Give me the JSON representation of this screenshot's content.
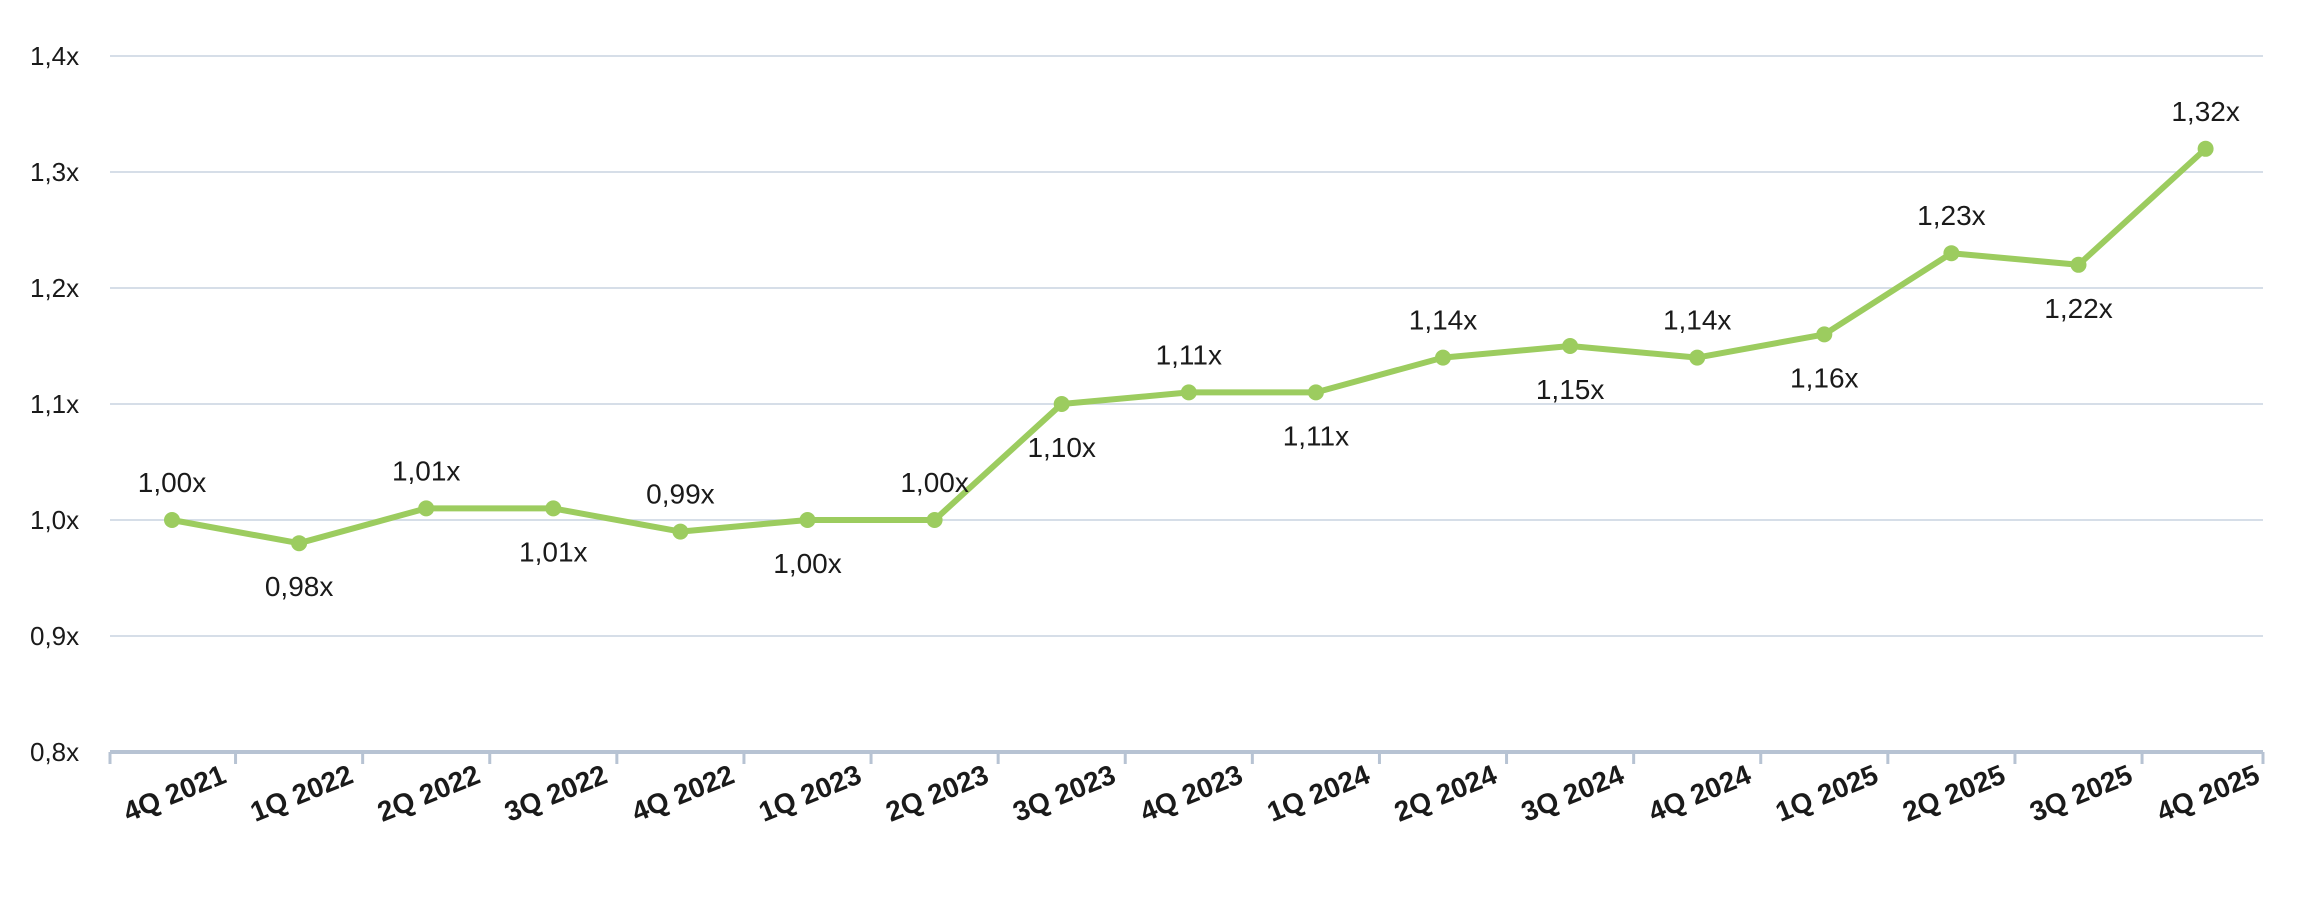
{
  "chart_data": {
    "type": "line",
    "title": "",
    "xlabel": "",
    "ylabel": "",
    "categories": [
      "4Q 2021",
      "1Q 2022",
      "2Q 2022",
      "3Q 2022",
      "4Q 2022",
      "1Q 2023",
      "2Q 2023",
      "3Q 2023",
      "4Q 2023",
      "1Q 2024",
      "2Q 2024",
      "3Q 2024",
      "4Q 2024",
      "1Q 2025",
      "2Q 2025",
      "3Q 2025",
      "4Q 2025"
    ],
    "series": [
      {
        "values": [
          1.0,
          0.98,
          1.01,
          1.01,
          0.99,
          1.0,
          1.0,
          1.1,
          1.11,
          1.11,
          1.14,
          1.15,
          1.14,
          1.16,
          1.23,
          1.22,
          1.32
        ],
        "labels": [
          "1,00x",
          "0,98x",
          "1,01x",
          "1,01x",
          "0,99x",
          "1,00x",
          "1,00x",
          "1,10x",
          "1,11x",
          "1,11x",
          "1,14x",
          "1,15x",
          "1,14x",
          "1,16x",
          "1,23x",
          "1,22x",
          "1,32x"
        ],
        "label_position": [
          "above",
          "below",
          "above",
          "below",
          "above",
          "below",
          "above",
          "below",
          "above",
          "below",
          "above",
          "below",
          "above",
          "below",
          "above",
          "below",
          "above"
        ]
      }
    ],
    "ylim": [
      0.8,
      1.4
    ],
    "y_ticks": [
      {
        "value": 1.4,
        "label": "1,4x"
      },
      {
        "value": 1.3,
        "label": "1,3x"
      },
      {
        "value": 1.2,
        "label": "1,2x"
      },
      {
        "value": 1.1,
        "label": "1,1x"
      },
      {
        "value": 1.0,
        "label": "1,0x"
      },
      {
        "value": 0.9,
        "label": "0,9x"
      },
      {
        "value": 0.8,
        "label": "0,8x"
      }
    ],
    "grid": true,
    "legend": "none",
    "colors": {
      "line": "#9ccc5f",
      "grid": "#c9d3e0",
      "axis": "#b7c3d3"
    }
  }
}
